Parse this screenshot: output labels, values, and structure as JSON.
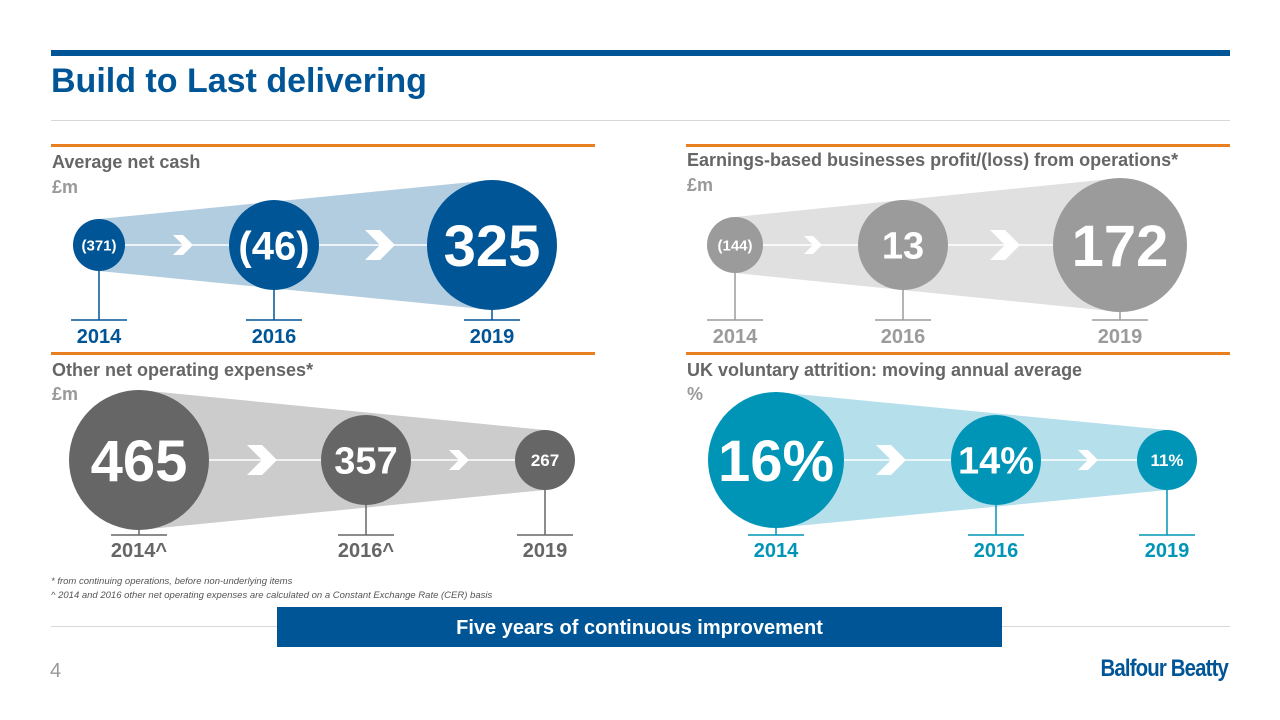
{
  "title": "Build to Last delivering",
  "colors": {
    "brand": "#005596",
    "accent": "#e8801f"
  },
  "panels": [
    {
      "title": "Average net cash",
      "unit": "£m",
      "years": [
        "2014",
        "2016",
        "2019"
      ],
      "values": [
        "(371)",
        "(46)",
        "325"
      ],
      "circle_color": "#005596",
      "cone_color": "#b3cde0",
      "year_color": "#005596"
    },
    {
      "title": "Earnings-based businesses profit/(loss) from operations*",
      "unit": "£m",
      "years": [
        "2014",
        "2016",
        "2019"
      ],
      "values": [
        "(144)",
        "13",
        "172"
      ],
      "circle_color": "#9b9b9b",
      "cone_color": "#e0e0e0",
      "year_color": "#9b9b9b"
    },
    {
      "title": "Other net operating expenses*",
      "unit": "£m",
      "years": [
        "2014^",
        "2016^",
        "2019"
      ],
      "values": [
        "465",
        "357",
        "267"
      ],
      "circle_color": "#666666",
      "cone_color": "#cccccc",
      "year_color": "#666666"
    },
    {
      "title": "UK voluntary attrition: moving annual average",
      "unit": "%",
      "years": [
        "2014",
        "2016",
        "2019"
      ],
      "values": [
        "16%",
        "14%",
        "11%"
      ],
      "circle_color": "#0095b6",
      "cone_color": "#b5dfeb",
      "year_color": "#0095b6"
    }
  ],
  "footnotes": [
    "* from continuing operations, before non-underlying items",
    "^ 2014 and 2016 other net operating expenses are calculated on a Constant Exchange Rate (CER) basis"
  ],
  "banner": "Five years of continuous improvement",
  "page_number": "4",
  "logo": "Balfour Beatty"
}
